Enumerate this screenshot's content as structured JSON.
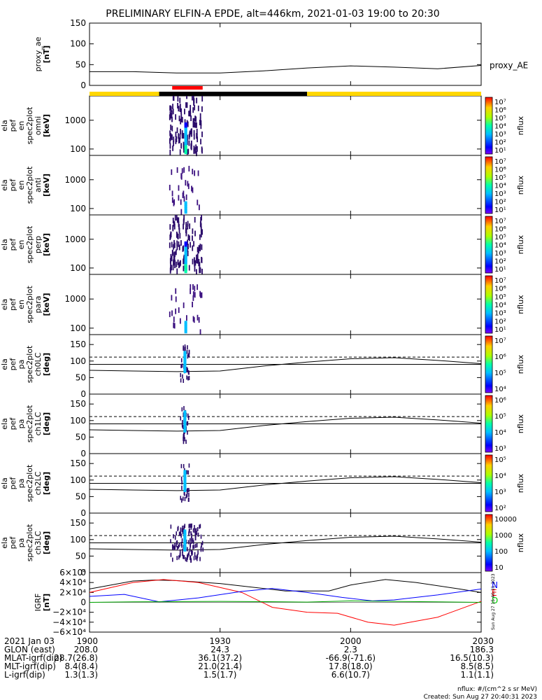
{
  "title": "PRELIMINARY ELFIN-A EPDE, alt=446km, 2021-01-03 19:00 to 20:30",
  "chart_data": {
    "type": "heatmap",
    "x_range_minutes": [
      0,
      90
    ],
    "x_tick_labels": [
      "1900",
      "1930",
      "2000",
      "2030"
    ],
    "x_tick_minutes": [
      0,
      30,
      60,
      90
    ],
    "panels": [
      {
        "id": "proxy-ae",
        "ylabel": [
          "proxy_ae",
          "[nT]"
        ],
        "ylim": [
          0,
          150
        ],
        "yticks": [
          0,
          50,
          100,
          150
        ],
        "series": [
          {
            "name": "proxy_AE",
            "t": [
              0,
              10,
              20,
              30,
              40,
              50,
              60,
              70,
              80,
              90
            ],
            "values": [
              33,
              33,
              30,
              30,
              35,
              42,
              47,
              44,
              40,
              48
            ]
          }
        ]
      },
      {
        "id": "spec-omni",
        "ylabel": [
          "ela",
          "pef",
          "en",
          "spec2plot",
          "omni",
          "[keV]"
        ],
        "ylog": true,
        "ylim": [
          60,
          7000
        ],
        "ytick_labels": [
          "100",
          "1000"
        ],
        "ytick_values": [
          100,
          1000
        ],
        "colorbar": {
          "label": "nflux",
          "ticks": [
            "10⁷",
            "10⁶",
            "10⁵",
            "10⁴",
            "10³",
            "10²",
            "10¹"
          ]
        }
      },
      {
        "id": "spec-anti",
        "ylabel": [
          "ela",
          "pef",
          "en",
          "spec2plot",
          "anti",
          "[keV]"
        ],
        "ylog": true,
        "ylim": [
          60,
          7000
        ],
        "ytick_labels": [
          "100",
          "1000"
        ],
        "ytick_values": [
          100,
          1000
        ],
        "colorbar": {
          "label": "nflux",
          "ticks": [
            "10⁷",
            "10⁶",
            "10⁵",
            "10⁴",
            "10³",
            "10²",
            "10¹"
          ]
        }
      },
      {
        "id": "spec-perp",
        "ylabel": [
          "ela",
          "pef",
          "en",
          "spec2plot",
          "perp",
          "[keV]"
        ],
        "ylog": true,
        "ylim": [
          60,
          7000
        ],
        "ytick_labels": [
          "100",
          "1000"
        ],
        "ytick_values": [
          100,
          1000
        ],
        "colorbar": {
          "label": "nflux",
          "ticks": [
            "10⁷",
            "10⁶",
            "10⁵",
            "10⁴",
            "10³",
            "10²",
            "10¹"
          ]
        }
      },
      {
        "id": "spec-para",
        "ylabel": [
          "ela",
          "pef",
          "en",
          "spec2plot",
          "para",
          "[keV]"
        ],
        "ylog": true,
        "ylim": [
          60,
          7000
        ],
        "ytick_labels": [
          "100",
          "1000"
        ],
        "ytick_values": [
          100,
          1000
        ],
        "colorbar": {
          "label": "nflux",
          "ticks": [
            "10⁷",
            "10⁶",
            "10⁵",
            "10⁴",
            "10³",
            "10²",
            "10¹"
          ]
        }
      },
      {
        "id": "pa-ch0",
        "ylabel": [
          "ela",
          "pef",
          "pa",
          "spec2plot",
          "ch0LC",
          "[deg]"
        ],
        "ylim": [
          0,
          180
        ],
        "yticks": [
          0,
          50,
          100,
          150
        ],
        "colorbar": {
          "label": "nflux",
          "ticks": [
            "10⁷",
            "10⁶",
            "10⁵",
            "10⁴"
          ]
        }
      },
      {
        "id": "pa-ch1",
        "ylabel": [
          "ela",
          "pef",
          "pa",
          "spec2plot",
          "ch1LC",
          "[deg]"
        ],
        "ylim": [
          0,
          180
        ],
        "yticks": [
          0,
          50,
          100,
          150
        ],
        "colorbar": {
          "label": "nflux",
          "ticks": [
            "10⁶",
            "10⁵",
            "10⁴",
            "10³"
          ]
        }
      },
      {
        "id": "pa-ch2",
        "ylabel": [
          "ela",
          "pef",
          "pa",
          "spec2plot",
          "ch2LC",
          "[deg]"
        ],
        "ylim": [
          0,
          180
        ],
        "yticks": [
          0,
          50,
          100,
          150
        ],
        "colorbar": {
          "label": "nflux",
          "ticks": [
            "10⁵",
            "10⁴",
            "10³",
            "10²"
          ]
        }
      },
      {
        "id": "pa-ch3",
        "ylabel": [
          "ela",
          "pef",
          "pa",
          "spec2plot",
          "ch3LC",
          "[deg]"
        ],
        "ylim": [
          0,
          180
        ],
        "yticks": [
          0,
          50,
          100,
          150
        ],
        "colorbar": {
          "label": "nflux",
          "ticks": [
            "10000",
            "1000",
            "100",
            "10"
          ]
        }
      },
      {
        "id": "igrf",
        "ylabel": [
          "IGRF",
          "[nT]"
        ],
        "ylim": [
          -60000,
          60000
        ],
        "ytick_labels": [
          "6×10⁴",
          "4×10⁴",
          "2×10⁴",
          "0",
          "−2×10⁴",
          "−4×10⁴",
          "−6×10⁴"
        ],
        "ytick_values": [
          60000,
          40000,
          20000,
          0,
          -20000,
          -40000,
          -60000
        ],
        "legend": [
          "N",
          "E",
          "D"
        ],
        "legend_colors": [
          "#0000ff",
          "#ff0000",
          "#00cc00"
        ]
      }
    ],
    "proxy_ae_label": "proxy_AE",
    "status_bar_segments": [
      {
        "start": 0,
        "end": 16,
        "color": "#ffd700"
      },
      {
        "start": 16,
        "end": 50,
        "color": "#000000"
      },
      {
        "start": 50,
        "end": 90,
        "color": "#ffd700"
      }
    ],
    "science_zone": {
      "start": 19,
      "end": 26,
      "color": "#ff0000"
    },
    "loss_cone_lines": {
      "dashed_deg": 112,
      "solid_deg": 90,
      "curve_t": [
        0,
        10,
        20,
        30,
        40,
        50,
        60,
        70,
        80,
        90
      ],
      "curve_deg": [
        72,
        70,
        68,
        70,
        85,
        97,
        107,
        110,
        102,
        92
      ]
    },
    "igrf_series": [
      {
        "name": "black",
        "color": "#000000",
        "t": [
          0,
          10,
          15,
          20,
          30,
          45,
          55,
          60,
          68,
          75,
          85,
          90
        ],
        "values": [
          27000,
          43000,
          45000,
          44000,
          38000,
          23000,
          23000,
          35000,
          46000,
          40000,
          27000,
          20000
        ]
      },
      {
        "name": "red",
        "color": "#ff0000",
        "t": [
          0,
          10,
          17,
          25,
          35,
          42,
          50,
          57,
          64,
          70,
          80,
          90
        ],
        "values": [
          20000,
          40000,
          46000,
          40000,
          20000,
          -10000,
          -20000,
          -22000,
          -40000,
          -46000,
          -30000,
          2000
        ]
      },
      {
        "name": "blue",
        "color": "#0000ff",
        "t": [
          0,
          8,
          16,
          25,
          35,
          42,
          50,
          58,
          65,
          70,
          80,
          90
        ],
        "values": [
          12000,
          16000,
          1000,
          9000,
          22000,
          28000,
          20000,
          10000,
          3000,
          5000,
          15000,
          27000
        ]
      },
      {
        "name": "green",
        "color": "#00aa00",
        "t": [
          0,
          10,
          20,
          30,
          40,
          50,
          60,
          70,
          80,
          90
        ],
        "values": [
          0,
          1000,
          1500,
          2000,
          1500,
          500,
          3000,
          2000,
          1000,
          0
        ]
      }
    ],
    "ephemeris": {
      "rows": [
        {
          "label": "2021 Jan 03",
          "values": [
            "1900",
            "1930",
            "2000",
            "2030"
          ]
        },
        {
          "label": "GLON (east)",
          "values": [
            "208.0",
            "24.3",
            "2.3",
            "186.3"
          ]
        },
        {
          "label": "MLAT-igrf(dip)",
          "values": [
            "28.7(26.8)",
            "36.1(37.2)",
            "-66.9(-71.6)",
            "16.5(10.3)"
          ]
        },
        {
          "label": "MLT-igrf(dip)",
          "values": [
            "8.4(8.4)",
            "21.0(21.4)",
            "17.8(18.0)",
            "8.5(8.5)"
          ]
        },
        {
          "label": "L-igrf(dip)",
          "values": [
            "1.3(1.3)",
            "1.5(1.7)",
            "6.6(10.7)",
            "1.1(1.1)"
          ]
        }
      ]
    },
    "footer": {
      "units": "nflux: #/(cm^2 s sr MeV)",
      "created": "Created: Sun Aug 27 20:40:31 2023",
      "vertical_stamp": "Sun Aug 27 15:40:31 2023"
    }
  }
}
